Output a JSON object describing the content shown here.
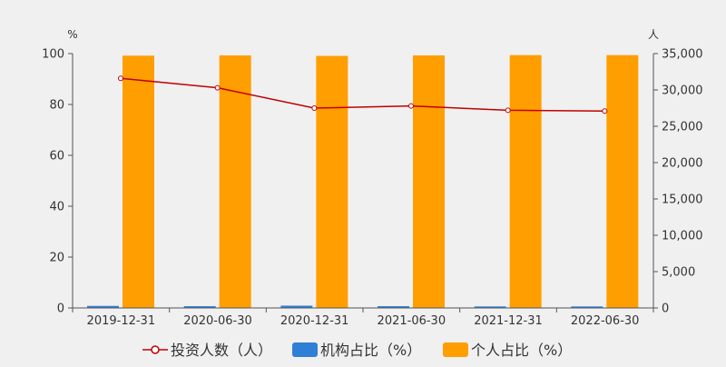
{
  "chart_data": {
    "type": "bar",
    "categories": [
      "2019-12-31",
      "2020-06-30",
      "2020-12-31",
      "2021-06-30",
      "2021-12-31",
      "2022-06-30"
    ],
    "left_axis": {
      "unit": "%",
      "ylim": [
        0,
        100
      ],
      "ticks": [
        "0",
        "20",
        "40",
        "60",
        "80",
        "100"
      ]
    },
    "right_axis": {
      "unit": "人",
      "ylim": [
        0,
        35000
      ],
      "ticks": [
        "0",
        "5,000",
        "10,000",
        "15,000",
        "20,000",
        "25,000",
        "30,000",
        "35,000"
      ]
    },
    "series": [
      {
        "name": "投资人数（人）",
        "kind": "line",
        "axis": "right",
        "color": "#c00000",
        "values": [
          31600,
          30300,
          27500,
          27800,
          27200,
          27100
        ]
      },
      {
        "name": "机构占比（%）",
        "kind": "bar",
        "axis": "left",
        "color": "#2f7fd6",
        "values": [
          0.8,
          0.7,
          0.9,
          0.7,
          0.6,
          0.6
        ]
      },
      {
        "name": "个人占比（%）",
        "kind": "bar",
        "axis": "left",
        "color": "#ff9e00",
        "values": [
          99.2,
          99.3,
          99.1,
          99.3,
          99.4,
          99.4
        ]
      }
    ],
    "grid": false,
    "legend_position": "bottom-center"
  }
}
